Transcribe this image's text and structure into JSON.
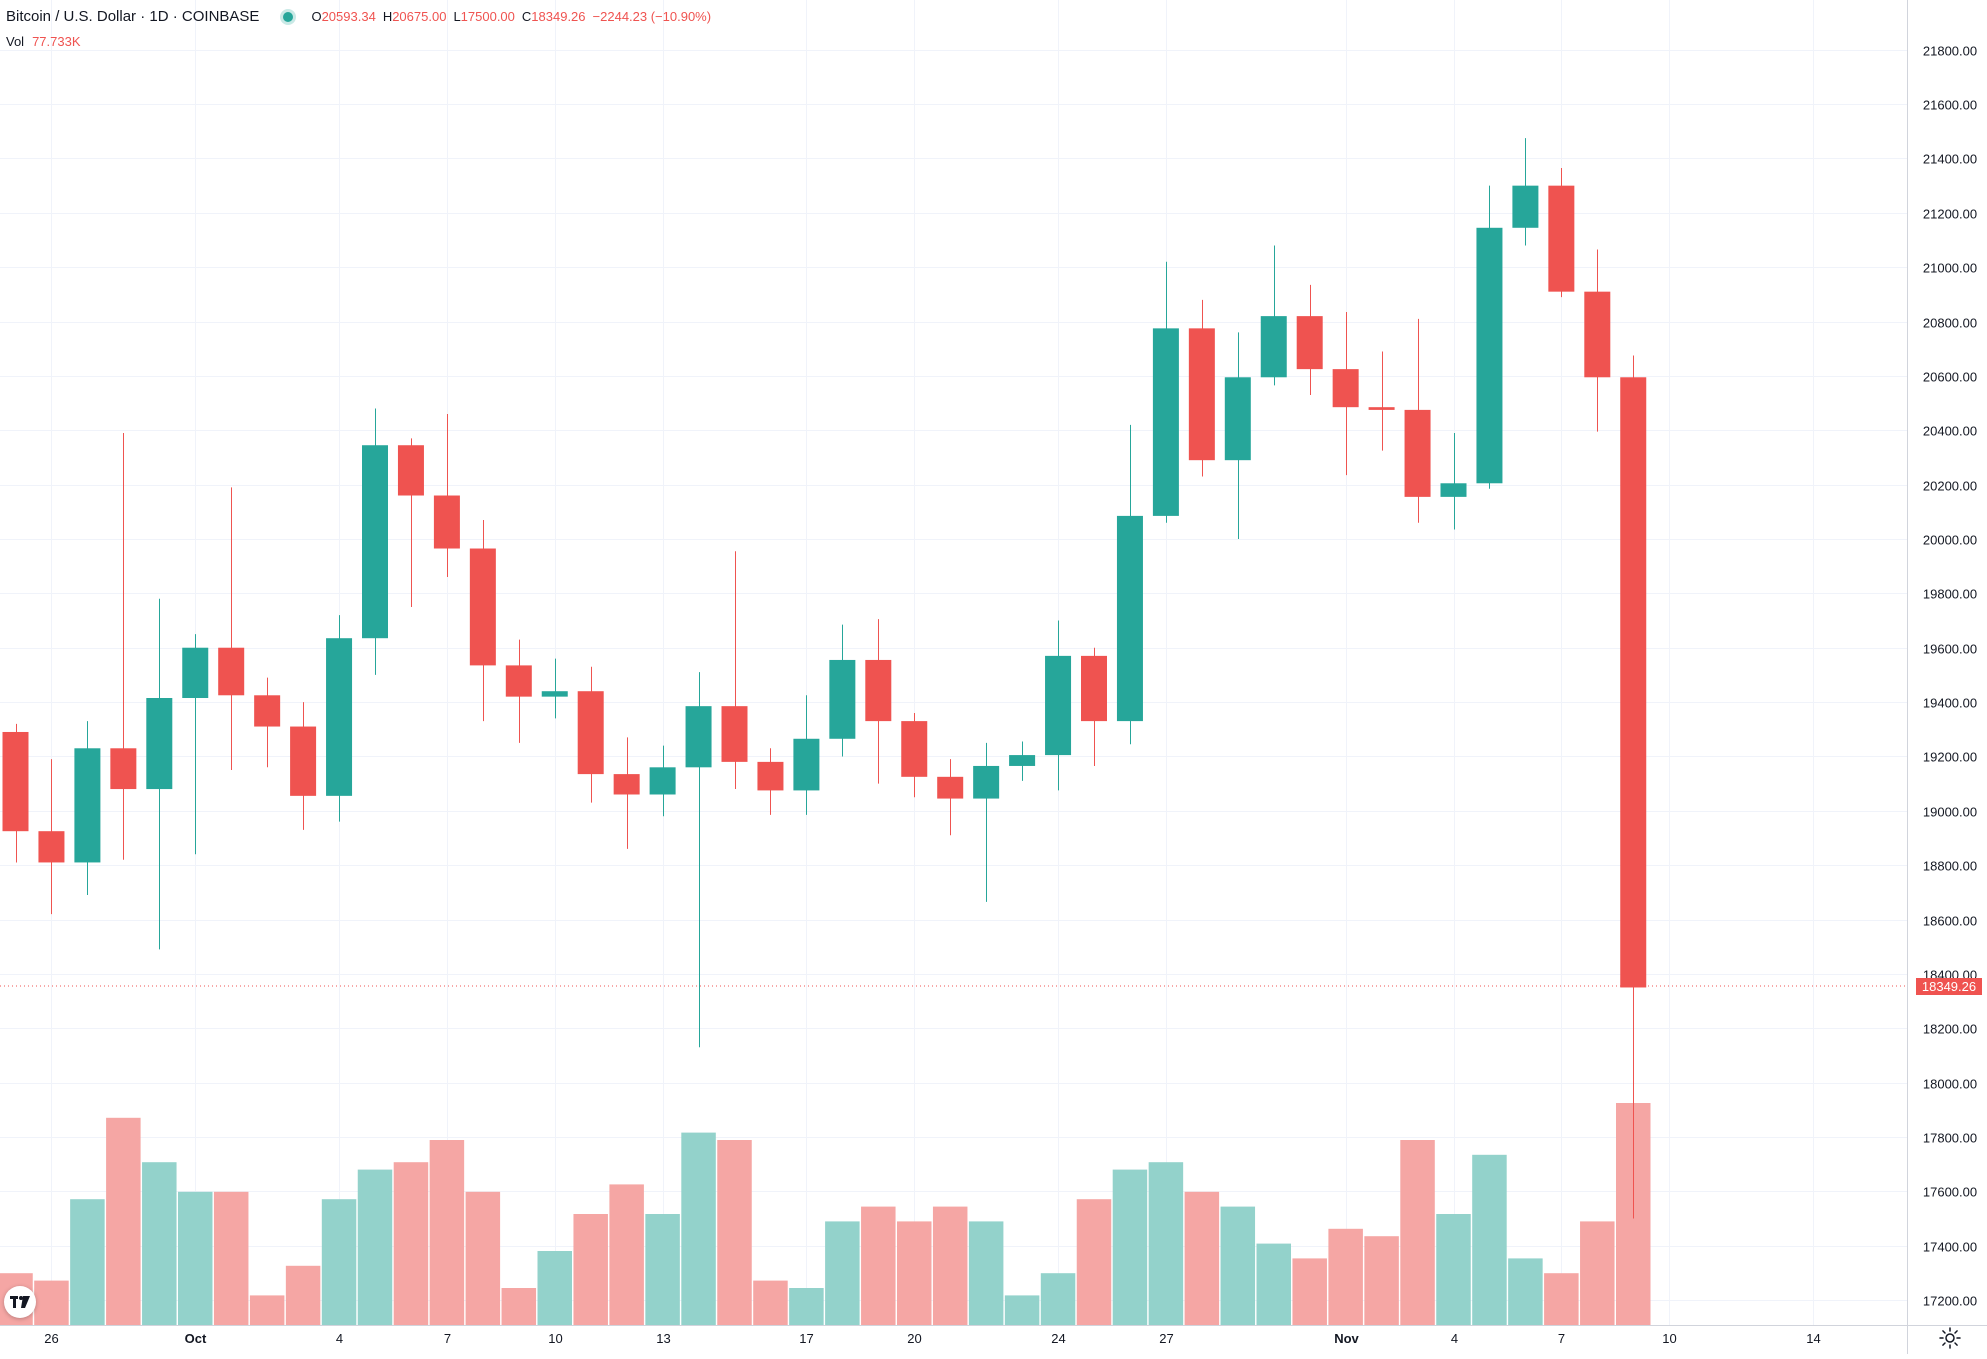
{
  "legend": {
    "symbol": "Bitcoin / U.S. Dollar",
    "interval": "1D",
    "exchange": "COINBASE",
    "open_label": "O",
    "open": "20593.34",
    "high_label": "H",
    "high": "20675.00",
    "low_label": "L",
    "low": "17500.00",
    "close_label": "C",
    "close": "18349.26",
    "change": "−2244.23 (−10.90%)"
  },
  "volume_legend": {
    "label": "Vol",
    "value": "77.733K"
  },
  "price_tag": "18349.26",
  "colors": {
    "up": "#26a69a",
    "down": "#ef5350",
    "up_vol": "#93d2cb",
    "down_vol": "#f5a6a4",
    "grid": "#f0f3fa"
  },
  "icons": {
    "logo": "tradingview-logo-icon",
    "settings": "gear-icon"
  },
  "chart_data": {
    "type": "candlestick",
    "ylim": [
      17100,
      21900
    ],
    "y_ticks": [
      "21800.00",
      "21600.00",
      "21400.00",
      "21200.00",
      "21000.00",
      "20800.00",
      "20600.00",
      "20400.00",
      "20200.00",
      "20000.00",
      "19800.00",
      "19600.00",
      "19400.00",
      "19200.00",
      "19000.00",
      "18800.00",
      "18600.00",
      "18400.00",
      "18200.00",
      "18000.00",
      "17800.00",
      "17600.00",
      "17400.00",
      "17200.00"
    ],
    "x_ticks": [
      {
        "label": "26",
        "day": 1
      },
      {
        "label": "Oct",
        "day": 5
      },
      {
        "label": "4",
        "day": 9
      },
      {
        "label": "7",
        "day": 12
      },
      {
        "label": "10",
        "day": 15
      },
      {
        "label": "13",
        "day": 18
      },
      {
        "label": "17",
        "day": 22
      },
      {
        "label": "20",
        "day": 25
      },
      {
        "label": "24",
        "day": 29
      },
      {
        "label": "27",
        "day": 32
      },
      {
        "label": "Nov",
        "day": 37
      },
      {
        "label": "4",
        "day": 40
      },
      {
        "label": "7",
        "day": 43
      },
      {
        "label": "10",
        "day": 46
      },
      {
        "label": "14",
        "day": 50
      }
    ],
    "candles": [
      {
        "o": 19290,
        "h": 19320,
        "l": 18810,
        "c": 18925,
        "v": 7
      },
      {
        "o": 18925,
        "h": 19190,
        "l": 18620,
        "c": 18810,
        "v": 6
      },
      {
        "o": 18810,
        "h": 19330,
        "l": 18690,
        "c": 19230,
        "v": 17
      },
      {
        "o": 19230,
        "h": 20390,
        "l": 18820,
        "c": 19080,
        "v": 28
      },
      {
        "o": 19080,
        "h": 19780,
        "l": 18490,
        "c": 19415,
        "v": 22
      },
      {
        "o": 19415,
        "h": 19650,
        "l": 18840,
        "c": 19600,
        "v": 18
      },
      {
        "o": 19600,
        "h": 20190,
        "l": 19150,
        "c": 19425,
        "v": 18
      },
      {
        "o": 19425,
        "h": 19490,
        "l": 19160,
        "c": 19310,
        "v": 4
      },
      {
        "o": 19310,
        "h": 19400,
        "l": 18930,
        "c": 19055,
        "v": 8
      },
      {
        "o": 19055,
        "h": 19720,
        "l": 18960,
        "c": 19635,
        "v": 17
      },
      {
        "o": 19635,
        "h": 20480,
        "l": 19500,
        "c": 20345,
        "v": 21
      },
      {
        "o": 20345,
        "h": 20370,
        "l": 19750,
        "c": 20160,
        "v": 22
      },
      {
        "o": 20160,
        "h": 20460,
        "l": 19860,
        "c": 19965,
        "v": 25
      },
      {
        "o": 19965,
        "h": 20070,
        "l": 19330,
        "c": 19535,
        "v": 18
      },
      {
        "o": 19535,
        "h": 19630,
        "l": 19250,
        "c": 19420,
        "v": 5
      },
      {
        "o": 19420,
        "h": 19560,
        "l": 19340,
        "c": 19440,
        "v": 10
      },
      {
        "o": 19440,
        "h": 19530,
        "l": 19030,
        "c": 19135,
        "v": 15
      },
      {
        "o": 19135,
        "h": 19270,
        "l": 18860,
        "c": 19060,
        "v": 19
      },
      {
        "o": 19060,
        "h": 19240,
        "l": 18980,
        "c": 19160,
        "v": 15
      },
      {
        "o": 19160,
        "h": 19510,
        "l": 18130,
        "c": 19385,
        "v": 26
      },
      {
        "o": 19385,
        "h": 19955,
        "l": 19080,
        "c": 19180,
        "v": 25
      },
      {
        "o": 19180,
        "h": 19230,
        "l": 18985,
        "c": 19075,
        "v": 6
      },
      {
        "o": 19075,
        "h": 19425,
        "l": 18985,
        "c": 19265,
        "v": 5
      },
      {
        "o": 19265,
        "h": 19685,
        "l": 19200,
        "c": 19555,
        "v": 14
      },
      {
        "o": 19555,
        "h": 19705,
        "l": 19100,
        "c": 19330,
        "v": 16
      },
      {
        "o": 19330,
        "h": 19360,
        "l": 19050,
        "c": 19125,
        "v": 14
      },
      {
        "o": 19125,
        "h": 19190,
        "l": 18910,
        "c": 19045,
        "v": 16
      },
      {
        "o": 19045,
        "h": 19250,
        "l": 18665,
        "c": 19165,
        "v": 14
      },
      {
        "o": 19165,
        "h": 19255,
        "l": 19110,
        "c": 19205,
        "v": 4
      },
      {
        "o": 19205,
        "h": 19700,
        "l": 19075,
        "c": 19570,
        "v": 7
      },
      {
        "o": 19570,
        "h": 19600,
        "l": 19165,
        "c": 19330,
        "v": 17
      },
      {
        "o": 19330,
        "h": 20420,
        "l": 19245,
        "c": 20085,
        "v": 21
      },
      {
        "o": 20085,
        "h": 21020,
        "l": 20060,
        "c": 20775,
        "v": 22
      },
      {
        "o": 20775,
        "h": 20880,
        "l": 20230,
        "c": 20290,
        "v": 18
      },
      {
        "o": 20290,
        "h": 20760,
        "l": 20000,
        "c": 20595,
        "v": 16
      },
      {
        "o": 20595,
        "h": 21080,
        "l": 20565,
        "c": 20820,
        "v": 11
      },
      {
        "o": 20820,
        "h": 20935,
        "l": 20530,
        "c": 20625,
        "v": 9
      },
      {
        "o": 20625,
        "h": 20835,
        "l": 20235,
        "c": 20485,
        "v": 13
      },
      {
        "o": 20485,
        "h": 20690,
        "l": 20325,
        "c": 20475,
        "v": 12
      },
      {
        "o": 20475,
        "h": 20810,
        "l": 20060,
        "c": 20155,
        "v": 25
      },
      {
        "o": 20155,
        "h": 20390,
        "l": 20035,
        "c": 20205,
        "v": 15
      },
      {
        "o": 20205,
        "h": 21300,
        "l": 20185,
        "c": 21145,
        "v": 23
      },
      {
        "o": 21145,
        "h": 21475,
        "l": 21080,
        "c": 21300,
        "v": 9
      },
      {
        "o": 21300,
        "h": 21365,
        "l": 20890,
        "c": 20910,
        "v": 7
      },
      {
        "o": 20910,
        "h": 21065,
        "l": 20395,
        "c": 20595,
        "v": 14
      },
      {
        "o": 20595,
        "h": 20675,
        "l": 17500,
        "c": 18350,
        "v": 30
      }
    ]
  }
}
